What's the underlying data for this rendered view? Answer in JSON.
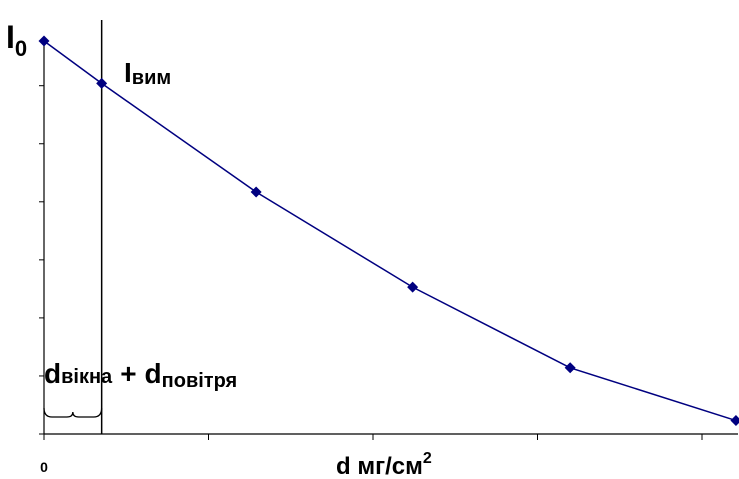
{
  "chart_data": {
    "type": "line",
    "title": "",
    "xlabel": "d мг/см",
    "xlabel_sup": "2",
    "ylabel": "",
    "x_tick_labels": [
      "0"
    ],
    "xlim": [
      0,
      640
    ],
    "ylim": [
      0,
      380
    ],
    "grid": false,
    "legend": "none",
    "series": [
      {
        "x": [
          0,
          56,
          206,
          358,
          511,
          672
        ],
        "y": [
          380,
          339,
          234,
          142,
          64,
          13
        ],
        "color": "#000080",
        "marker": "diamond"
      }
    ],
    "annotations": {
      "i0": {
        "main": "I",
        "sub": "0"
      },
      "ivym": {
        "main": "I",
        "sub": "вим"
      },
      "thickness": {
        "part1_main": "d",
        "part1_sub": "вікна",
        "plus": "+",
        "part2_main": "d",
        "part2_sub": "повітря"
      },
      "vertical_line_x": 56
    }
  }
}
